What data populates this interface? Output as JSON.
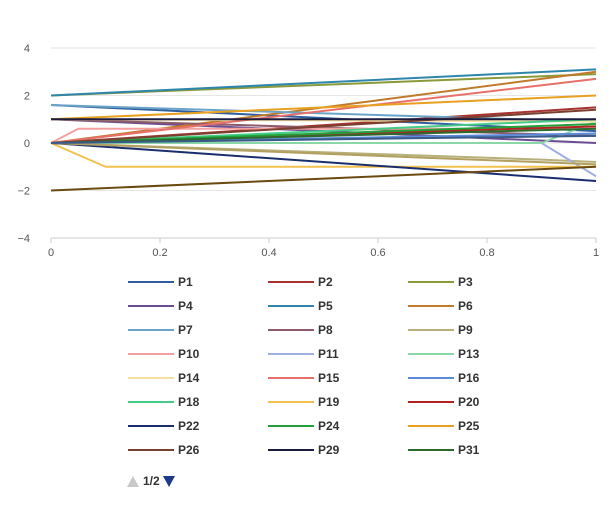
{
  "chart_data": {
    "type": "line",
    "xlim": [
      0,
      1
    ],
    "ylim": [
      -4,
      4
    ],
    "x_ticks": [
      "0",
      "0.2",
      "0.4",
      "0.6",
      "0.8",
      "1"
    ],
    "y_ticks": [
      "4",
      "2",
      "0",
      "−2",
      "−4"
    ],
    "x_tick_values": [
      0,
      0.2,
      0.4,
      0.6,
      0.8,
      1
    ],
    "y_tick_values": [
      4,
      2,
      0,
      -2,
      -4
    ],
    "grid": "horizontal",
    "legend_placement": "bottom",
    "series": [
      {
        "name": "P1",
        "color": "#2f5f9e",
        "x": [
          0,
          1
        ],
        "y": [
          1.6,
          0.5
        ]
      },
      {
        "name": "P2",
        "color": "#a83232",
        "x": [
          0,
          1
        ],
        "y": [
          0,
          1.5
        ]
      },
      {
        "name": "P3",
        "color": "#8a9a3a",
        "x": [
          0,
          1
        ],
        "y": [
          2.0,
          2.9
        ]
      },
      {
        "name": "P4",
        "color": "#6a4c93",
        "x": [
          0,
          1
        ],
        "y": [
          1.0,
          0.0
        ]
      },
      {
        "name": "P5",
        "color": "#2e86ab",
        "x": [
          0,
          1
        ],
        "y": [
          2.0,
          3.1
        ]
      },
      {
        "name": "P6",
        "color": "#c07a2c",
        "x": [
          0,
          1
        ],
        "y": [
          0,
          3.0
        ]
      },
      {
        "name": "P7",
        "color": "#6aa3c8",
        "x": [
          0,
          1
        ],
        "y": [
          1.6,
          0.9
        ]
      },
      {
        "name": "P8",
        "color": "#8e5a6a",
        "x": [
          0,
          1
        ],
        "y": [
          1.0,
          0.3
        ]
      },
      {
        "name": "P9",
        "color": "#b8b07a",
        "x": [
          0,
          0.9,
          1
        ],
        "y": [
          0,
          -0.7,
          -0.8
        ]
      },
      {
        "name": "P10",
        "color": "#f4a0a0",
        "x": [
          0,
          0.05,
          1
        ],
        "y": [
          0,
          0.6,
          0.6
        ]
      },
      {
        "name": "P11",
        "color": "#a0aee0",
        "x": [
          0,
          0.9,
          1
        ],
        "y": [
          0,
          0,
          -1.4
        ]
      },
      {
        "name": "P13",
        "color": "#8ad8a8",
        "x": [
          0,
          0.9,
          1
        ],
        "y": [
          0,
          0,
          0.9
        ]
      },
      {
        "name": "P14",
        "color": "#f4dfa0",
        "x": [
          0,
          1
        ],
        "y": [
          1.0,
          0.9
        ]
      },
      {
        "name": "P15",
        "color": "#e8706a",
        "x": [
          0,
          1
        ],
        "y": [
          0,
          2.7
        ]
      },
      {
        "name": "P16",
        "color": "#5a8ad8",
        "x": [
          0,
          1
        ],
        "y": [
          0,
          0.4
        ]
      },
      {
        "name": "P18",
        "color": "#44cc88",
        "x": [
          0,
          1
        ],
        "y": [
          0,
          1.0
        ]
      },
      {
        "name": "P19",
        "color": "#f2c14e",
        "x": [
          0,
          0.1,
          1
        ],
        "y": [
          0,
          -1.0,
          -1.0
        ]
      },
      {
        "name": "P20",
        "color": "#b22222",
        "x": [
          0,
          1
        ],
        "y": [
          0,
          0.7
        ]
      },
      {
        "name": "P22",
        "color": "#1a2e6e",
        "x": [
          0,
          1
        ],
        "y": [
          0,
          -1.6
        ]
      },
      {
        "name": "P24",
        "color": "#22a03a",
        "x": [
          0,
          1
        ],
        "y": [
          0,
          0.8
        ]
      },
      {
        "name": "P25",
        "color": "#e8a020",
        "x": [
          0,
          1
        ],
        "y": [
          1.0,
          2.0
        ]
      },
      {
        "name": "P26",
        "color": "#7a4030",
        "x": [
          0,
          1
        ],
        "y": [
          0,
          1.4
        ]
      },
      {
        "name": "P29",
        "color": "#1c1c40",
        "x": [
          0,
          1
        ],
        "y": [
          1.0,
          1.0
        ]
      },
      {
        "name": "P31",
        "color": "#2d6a2d",
        "x": [
          0,
          1
        ],
        "y": [
          0,
          0.6
        ]
      },
      {
        "color": "#6a4a10",
        "x": [
          0,
          1
        ],
        "y": [
          -2.0,
          -1.0
        ]
      },
      {
        "color": "#b2a060",
        "x": [
          0,
          1
        ],
        "y": [
          0,
          -0.9
        ]
      },
      {
        "color": "#3a5a8a",
        "x": [
          0,
          1
        ],
        "y": [
          0,
          0.3
        ]
      }
    ]
  },
  "pager": {
    "text": "1/2"
  }
}
